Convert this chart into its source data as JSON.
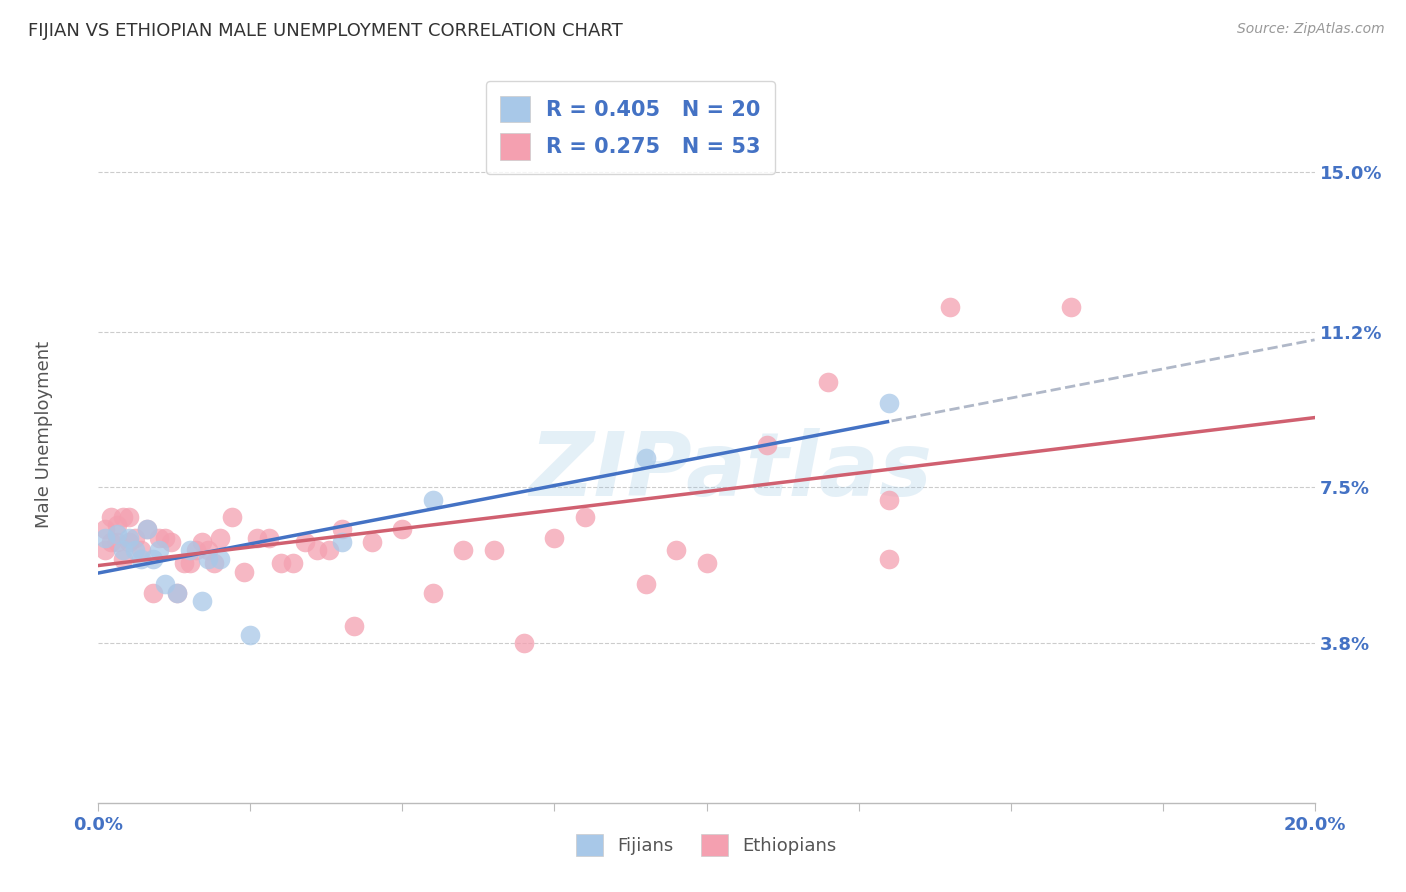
{
  "title": "FIJIAN VS ETHIOPIAN MALE UNEMPLOYMENT CORRELATION CHART",
  "source": "Source: ZipAtlas.com",
  "ylabel": "Male Unemployment",
  "watermark": "ZIPatlas",
  "xlim": [
    0.0,
    0.2
  ],
  "ylim": [
    0.0,
    0.175
  ],
  "ytick_values": [
    0.038,
    0.075,
    0.112,
    0.15
  ],
  "ytick_labels": [
    "3.8%",
    "7.5%",
    "11.2%",
    "15.0%"
  ],
  "xtick_show_labels": [
    0.0,
    0.2
  ],
  "xtick_all": [
    0.0,
    0.025,
    0.05,
    0.075,
    0.1,
    0.125,
    0.15,
    0.175,
    0.2
  ],
  "fijian_scatter_color": "#a8c8e8",
  "ethiopian_scatter_color": "#f4a0b0",
  "fijian_line_color": "#4472c4",
  "ethiopian_line_color": "#d06070",
  "dashed_color": "#b0b8c8",
  "legend1_label1": "R = 0.405   N = 20",
  "legend1_label2": "R = 0.275   N = 53",
  "legend2_label1": "Fijians",
  "legend2_label2": "Ethiopians",
  "fijian_x": [
    0.001,
    0.003,
    0.004,
    0.005,
    0.006,
    0.007,
    0.008,
    0.009,
    0.01,
    0.011,
    0.013,
    0.015,
    0.017,
    0.018,
    0.02,
    0.025,
    0.04,
    0.055,
    0.09,
    0.13
  ],
  "fijian_y": [
    0.063,
    0.064,
    0.06,
    0.063,
    0.06,
    0.058,
    0.065,
    0.058,
    0.06,
    0.052,
    0.05,
    0.06,
    0.048,
    0.058,
    0.058,
    0.04,
    0.062,
    0.072,
    0.082,
    0.095
  ],
  "ethiopian_x": [
    0.001,
    0.001,
    0.002,
    0.002,
    0.003,
    0.003,
    0.004,
    0.004,
    0.005,
    0.005,
    0.006,
    0.007,
    0.008,
    0.009,
    0.01,
    0.011,
    0.012,
    0.013,
    0.014,
    0.015,
    0.016,
    0.017,
    0.018,
    0.019,
    0.02,
    0.022,
    0.024,
    0.026,
    0.028,
    0.03,
    0.032,
    0.034,
    0.036,
    0.038,
    0.04,
    0.042,
    0.045,
    0.05,
    0.055,
    0.06,
    0.065,
    0.07,
    0.075,
    0.08,
    0.09,
    0.095,
    0.1,
    0.11,
    0.12,
    0.13,
    0.14,
    0.16,
    0.13
  ],
  "ethiopian_y": [
    0.06,
    0.065,
    0.062,
    0.068,
    0.062,
    0.066,
    0.058,
    0.068,
    0.062,
    0.068,
    0.063,
    0.06,
    0.065,
    0.05,
    0.063,
    0.063,
    0.062,
    0.05,
    0.057,
    0.057,
    0.06,
    0.062,
    0.06,
    0.057,
    0.063,
    0.068,
    0.055,
    0.063,
    0.063,
    0.057,
    0.057,
    0.062,
    0.06,
    0.06,
    0.065,
    0.042,
    0.062,
    0.065,
    0.05,
    0.06,
    0.06,
    0.038,
    0.063,
    0.068,
    0.052,
    0.06,
    0.057,
    0.085,
    0.1,
    0.072,
    0.118,
    0.118,
    0.058
  ]
}
